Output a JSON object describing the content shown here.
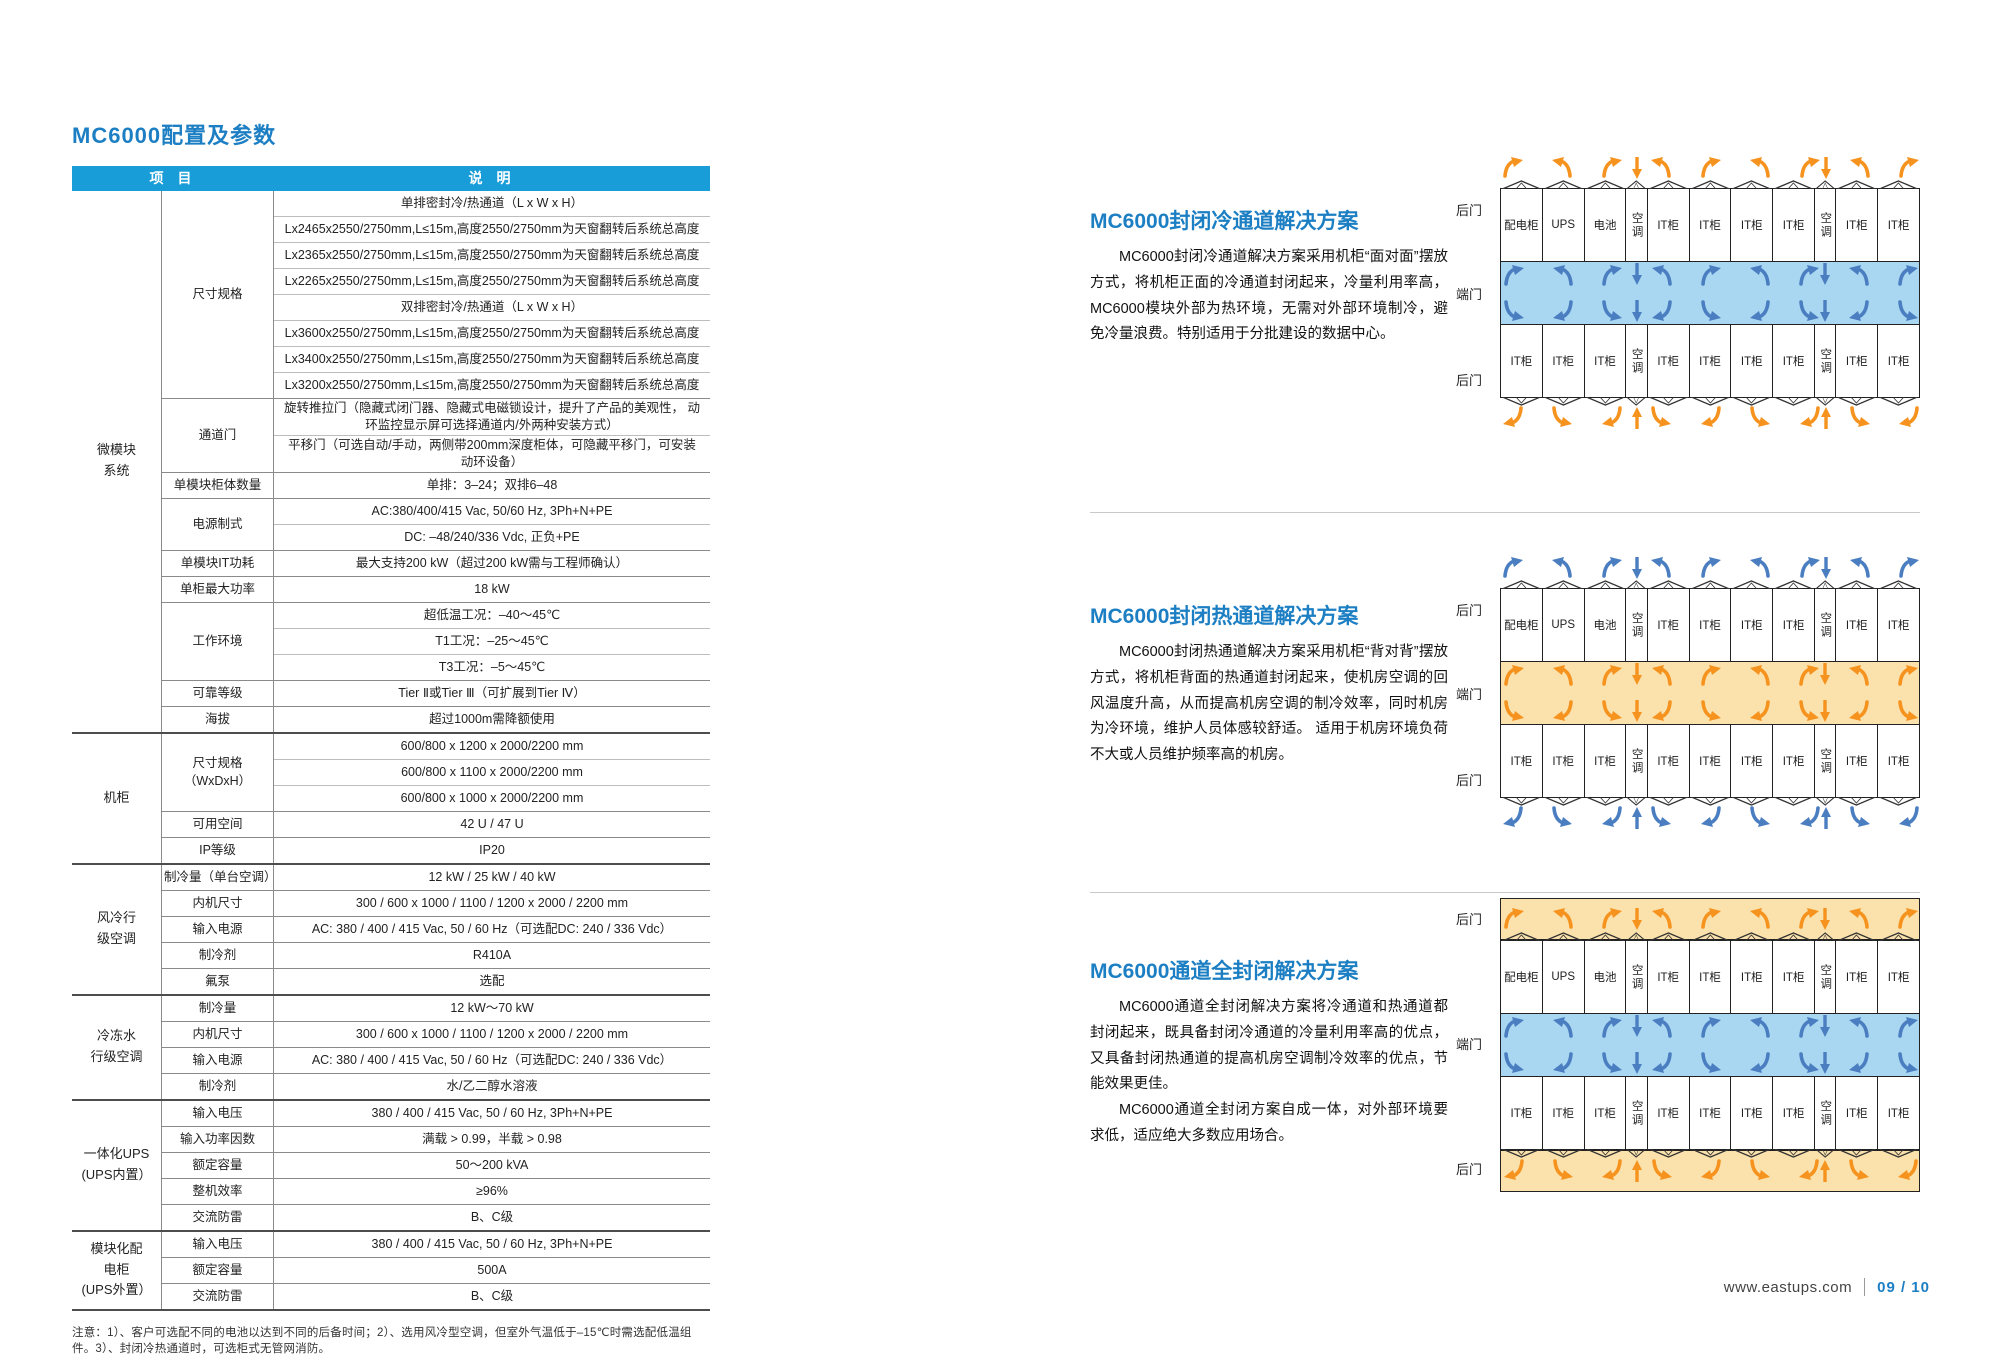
{
  "page": {
    "title": "MC6000配置及参数",
    "footer": {
      "url": "www.eastups.com",
      "page": "09 / 10"
    }
  },
  "colors": {
    "accent": "#199dd9",
    "heading": "#1d7fc3",
    "cold_fill": "#a9d7f2",
    "cold_arrow": "#4a7ec0",
    "hot_fill": "#fbe2ac",
    "hot_arrow": "#f6921e"
  },
  "table": {
    "header": {
      "col1": "项　目",
      "col2": "说　明"
    },
    "groups": [
      {
        "group": "微模块\n系统",
        "rows": [
          {
            "label": "尺寸规格",
            "values": [
              "单排密封冷/热通道（L x W x H）",
              "Lx2465x2550/2750mm,L≤15m,高度2550/2750mm为天窗翻转后系统总高度",
              "Lx2365x2550/2750mm,L≤15m,高度2550/2750mm为天窗翻转后系统总高度",
              "Lx2265x2550/2750mm,L≤15m,高度2550/2750mm为天窗翻转后系统总高度",
              "双排密封冷/热通道（L x W x H）",
              "Lx3600x2550/2750mm,L≤15m,高度2550/2750mm为天窗翻转后系统总高度",
              "Lx3400x2550/2750mm,L≤15m,高度2550/2750mm为天窗翻转后系统总高度",
              "Lx3200x2550/2750mm,L≤15m,高度2550/2750mm为天窗翻转后系统总高度"
            ]
          },
          {
            "label": "通道门",
            "values": [
              "旋转推拉门（隐藏式闭门器、隐藏式电磁锁设计，提升了产品的美观性， 动环监控显示屏可选择通道内/外两种安装方式）",
              "平移门（可选自动/手动，两侧带200mm深度柜体，可隐藏平移门，可安装动环设备）"
            ]
          },
          {
            "label": "单模块柜体数量",
            "values": [
              "单排：3–24；双排6–48"
            ]
          },
          {
            "label": "电源制式",
            "values": [
              "AC:380/400/415 Vac, 50/60 Hz, 3Ph+N+PE",
              "DC: –48/240/336 Vdc, 正负+PE"
            ]
          },
          {
            "label": "单模块IT功耗",
            "values": [
              "最大支持200 kW（超过200 kW需与工程师确认）"
            ]
          },
          {
            "label": "单柜最大功率",
            "values": [
              "18 kW"
            ]
          },
          {
            "label": "工作环境",
            "values": [
              "超低温工况：–40～45℃",
              "T1工况：–25～45℃",
              "T3工况：–5～45℃"
            ]
          },
          {
            "label": "可靠等级",
            "values": [
              "Tier Ⅱ或Tier Ⅲ（可扩展到Tier Ⅳ）"
            ]
          },
          {
            "label": "海拔",
            "values": [
              "超过1000m需降额使用"
            ]
          }
        ]
      },
      {
        "group": "机柜",
        "rows": [
          {
            "label": "尺寸规格\n（WxDxH）",
            "values": [
              "600/800 x 1200 x 2000/2200 mm",
              "600/800 x 1100 x 2000/2200 mm",
              "600/800 x 1000 x 2000/2200 mm"
            ]
          },
          {
            "label": "可用空间",
            "values": [
              "42 U / 47 U"
            ]
          },
          {
            "label": "IP等级",
            "values": [
              "IP20"
            ]
          }
        ]
      },
      {
        "group": "风冷行\n级空调",
        "rows": [
          {
            "label": "制冷量（单台空调）",
            "values": [
              "12 kW / 25 kW / 40 kW"
            ]
          },
          {
            "label": "内机尺寸",
            "values": [
              "300 / 600 x 1000 / 1100 / 1200 x 2000 / 2200 mm"
            ]
          },
          {
            "label": "输入电源",
            "values": [
              "AC: 380 / 400 / 415 Vac, 50 / 60 Hz（可选配DC: 240 / 336 Vdc）"
            ]
          },
          {
            "label": "制冷剂",
            "values": [
              "R410A"
            ]
          },
          {
            "label": "氟泵",
            "values": [
              "选配"
            ]
          }
        ]
      },
      {
        "group": "冷冻水\n行级空调",
        "rows": [
          {
            "label": "制冷量",
            "values": [
              "12 kW～70 kW"
            ]
          },
          {
            "label": "内机尺寸",
            "values": [
              "300 / 600 x 1000 / 1100 / 1200 x 2000 / 2200 mm"
            ]
          },
          {
            "label": "输入电源",
            "values": [
              "AC: 380 / 400 / 415 Vac, 50 / 60 Hz（可选配DC: 240 / 336 Vdc）"
            ]
          },
          {
            "label": "制冷剂",
            "values": [
              "水/乙二醇水溶液"
            ]
          }
        ]
      },
      {
        "group": "一体化UPS\n(UPS内置）",
        "rows": [
          {
            "label": "输入电压",
            "values": [
              "380 / 400 / 415 Vac, 50 / 60 Hz, 3Ph+N+PE"
            ]
          },
          {
            "label": "输入功率因数",
            "values": [
              "满载 > 0.99，半载 > 0.98"
            ]
          },
          {
            "label": "额定容量",
            "values": [
              "50～200 kVA"
            ]
          },
          {
            "label": "整机效率",
            "values": [
              "≥96%"
            ]
          },
          {
            "label": "交流防雷",
            "values": [
              "B、C级"
            ]
          }
        ]
      },
      {
        "group": "模块化配\n电柜\n(UPS外置）",
        "rows": [
          {
            "label": "输入电压",
            "values": [
              "380 / 400 / 415 Vac, 50 / 60 Hz, 3Ph+N+PE"
            ]
          },
          {
            "label": "额定容量",
            "values": [
              "500A"
            ]
          },
          {
            "label": "交流防雷",
            "values": [
              "B、C级"
            ]
          }
        ]
      }
    ],
    "note": "注意：1）、客户可选配不同的电池以达到不同的后备时间；2）、选用风冷型空调，但室外气温低于–15℃时需选配低温组件。3）、封闭冷热通道时，可选柜式无管网消防。"
  },
  "sections": [
    {
      "title": "MC6000封闭冷通道解决方案",
      "paragraphs": [
        "MC6000封闭冷通道解决方案采用机柜“面对面”摆放方式，将机柜正面的冷通道封闭起来，冷量利用率高， MC6000模块外部为热环境，无需对外部环境制冷，避免冷量浪费。特别适用于分批建设的数据中心。"
      ],
      "diagram": {
        "left_labels": [
          "后门",
          "端门",
          "后门"
        ],
        "top_row": [
          "配电柜",
          "UPS",
          "电池",
          "空调",
          "IT柜",
          "IT柜",
          "IT柜",
          "IT柜",
          "空调",
          "IT柜",
          "IT柜"
        ],
        "bottom_row": [
          "IT柜",
          "IT柜",
          "IT柜",
          "空调",
          "IT柜",
          "IT柜",
          "IT柜",
          "IT柜",
          "空调",
          "IT柜",
          "IT柜"
        ],
        "aisle": "cold",
        "outer": "hot",
        "style": "open"
      }
    },
    {
      "title": "MC6000封闭热通道解决方案",
      "paragraphs": [
        "MC6000封闭热通道解决方案采用机柜“背对背”摆放方式，将机柜背面的热通道封闭起来，使机房空调的回风温度升高，从而提高机房空调的制冷效率，同时机房为冷环境，维护人员体感较舒适。 适用于机房环境负荷不大或人员维护频率高的机房。"
      ],
      "diagram": {
        "left_labels": [
          "后门",
          "端门",
          "后门"
        ],
        "top_row": [
          "配电柜",
          "UPS",
          "电池",
          "空调",
          "IT柜",
          "IT柜",
          "IT柜",
          "IT柜",
          "空调",
          "IT柜",
          "IT柜"
        ],
        "bottom_row": [
          "IT柜",
          "IT柜",
          "IT柜",
          "空调",
          "IT柜",
          "IT柜",
          "IT柜",
          "IT柜",
          "空调",
          "IT柜",
          "IT柜"
        ],
        "aisle": "hot",
        "outer": "cold",
        "style": "open"
      }
    },
    {
      "title": "MC6000通道全封闭解决方案",
      "paragraphs": [
        "MC6000通道全封闭解决方案将冷通道和热通道都封闭起来，既具备封闭冷通道的冷量利用率高的优点，又具备封闭热通道的提高机房空调制冷效率的优点，节能效果更佳。",
        "MC6000通道全封闭方案自成一体，对外部环境要求低，适应绝大多数应用场合。"
      ],
      "diagram": {
        "left_labels": [
          "后门",
          "端门",
          "后门"
        ],
        "top_row": [
          "配电柜",
          "UPS",
          "电池",
          "空调",
          "IT柜",
          "IT柜",
          "IT柜",
          "IT柜",
          "空调",
          "IT柜",
          "IT柜"
        ],
        "bottom_row": [
          "IT柜",
          "IT柜",
          "IT柜",
          "空调",
          "IT柜",
          "IT柜",
          "IT柜",
          "IT柜",
          "空调",
          "IT柜",
          "IT柜"
        ],
        "aisle": "cold",
        "outer": "hot",
        "style": "banded"
      }
    }
  ]
}
